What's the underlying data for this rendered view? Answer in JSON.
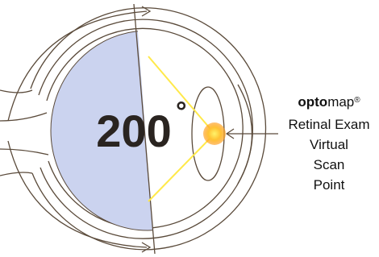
{
  "diagram": {
    "angle_label": "200",
    "degree_sign": "°",
    "brand": {
      "bold": "opto",
      "regular": "map",
      "mark": "®"
    },
    "caption_lines": [
      "Retinal Exam",
      "Virtual",
      "Scan",
      "Point"
    ]
  }
}
